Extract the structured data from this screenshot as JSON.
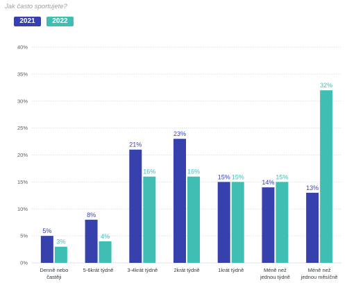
{
  "question": "Jak často sportujete?",
  "colors": {
    "series_2021": "#3641ad",
    "series_2022": "#3fbfb4",
    "grid": "#d5d8dc",
    "axis_text": "#555b61"
  },
  "legend": [
    {
      "label": "2021",
      "color": "#3641ad"
    },
    {
      "label": "2022",
      "color": "#3fbfb4"
    }
  ],
  "chart_data": {
    "type": "bar",
    "title": "",
    "xlabel": "",
    "ylabel": "",
    "ylim": [
      0,
      40
    ],
    "y_ticks": [
      "0%",
      "5%",
      "10%",
      "15%",
      "20%",
      "25%",
      "30%",
      "35%",
      "40%"
    ],
    "y_tick_values": [
      0,
      5,
      10,
      15,
      20,
      25,
      30,
      35,
      40
    ],
    "grid": true,
    "legend_position": "top-left",
    "categories": [
      [
        "Denně nebo",
        "častěji"
      ],
      [
        "5-6krát týdně"
      ],
      [
        "3-4krát týdně"
      ],
      [
        "2krát týdně"
      ],
      [
        "1krát týdně"
      ],
      [
        "Méně než",
        "jednou týdně"
      ],
      [
        "Méně než",
        "jednou měsíčně"
      ]
    ],
    "series": [
      {
        "name": "2021",
        "values": [
          5,
          8,
          21,
          23,
          15,
          14,
          13
        ],
        "labels": [
          "5%",
          "8%",
          "21%",
          "23%",
          "15%",
          "14%",
          "13%"
        ]
      },
      {
        "name": "2022",
        "values": [
          3,
          4,
          16,
          16,
          15,
          15,
          32
        ],
        "labels": [
          "3%",
          "4%",
          "16%",
          "16%",
          "15%",
          "15%",
          "32%"
        ]
      }
    ]
  }
}
